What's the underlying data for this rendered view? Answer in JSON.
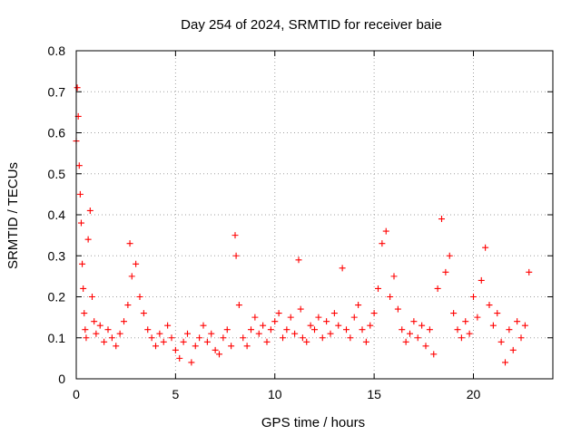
{
  "chart_data": {
    "type": "scatter",
    "title": "Day 254 of 2024, SRMTID for receiver baie",
    "xlabel": "GPS time / hours",
    "ylabel": "SRMTID / TECUs",
    "xlim": [
      0,
      24
    ],
    "ylim": [
      0,
      0.8
    ],
    "xticks": [
      "0",
      "5",
      "10",
      "15",
      "20"
    ],
    "yticks": [
      "0",
      "0.1",
      "0.2",
      "0.3",
      "0.4",
      "0.5",
      "0.6",
      "0.7",
      "0.8"
    ],
    "grid": true,
    "series": [
      {
        "name": "SRMTID",
        "color": "#ff0000",
        "marker": "plus",
        "x": [
          0.0,
          0.05,
          0.1,
          0.15,
          0.2,
          0.25,
          0.3,
          0.35,
          0.4,
          0.45,
          0.5,
          0.6,
          0.7,
          0.8,
          0.9,
          1.0,
          1.2,
          1.4,
          1.6,
          1.8,
          2.0,
          2.2,
          2.4,
          2.6,
          2.7,
          2.8,
          3.0,
          3.2,
          3.4,
          3.6,
          3.8,
          4.0,
          4.2,
          4.4,
          4.6,
          4.8,
          5.0,
          5.2,
          5.4,
          5.6,
          5.8,
          6.0,
          6.2,
          6.4,
          6.6,
          6.8,
          7.0,
          7.2,
          7.4,
          7.6,
          7.8,
          8.0,
          8.05,
          8.2,
          8.4,
          8.6,
          8.8,
          9.0,
          9.2,
          9.4,
          9.6,
          9.8,
          10.0,
          10.2,
          10.4,
          10.6,
          10.8,
          11.0,
          11.2,
          11.3,
          11.4,
          11.6,
          11.8,
          12.0,
          12.2,
          12.4,
          12.6,
          12.8,
          13.0,
          13.2,
          13.4,
          13.6,
          13.8,
          14.0,
          14.2,
          14.4,
          14.6,
          14.8,
          15.0,
          15.2,
          15.4,
          15.6,
          15.8,
          16.0,
          16.2,
          16.4,
          16.6,
          16.8,
          17.0,
          17.2,
          17.4,
          17.6,
          17.8,
          18.0,
          18.2,
          18.4,
          18.6,
          18.8,
          19.0,
          19.2,
          19.4,
          19.6,
          19.8,
          20.0,
          20.2,
          20.4,
          20.6,
          20.8,
          21.0,
          21.2,
          21.4,
          21.6,
          21.8,
          22.0,
          22.2,
          22.4,
          22.6,
          22.8
        ],
        "y": [
          0.58,
          0.71,
          0.64,
          0.52,
          0.45,
          0.38,
          0.28,
          0.22,
          0.16,
          0.12,
          0.1,
          0.34,
          0.41,
          0.2,
          0.14,
          0.11,
          0.13,
          0.09,
          0.12,
          0.1,
          0.08,
          0.11,
          0.14,
          0.18,
          0.33,
          0.25,
          0.28,
          0.2,
          0.16,
          0.12,
          0.1,
          0.08,
          0.11,
          0.09,
          0.13,
          0.1,
          0.07,
          0.05,
          0.09,
          0.11,
          0.04,
          0.08,
          0.1,
          0.13,
          0.09,
          0.11,
          0.07,
          0.06,
          0.1,
          0.12,
          0.08,
          0.35,
          0.3,
          0.18,
          0.1,
          0.08,
          0.12,
          0.15,
          0.11,
          0.13,
          0.09,
          0.12,
          0.14,
          0.16,
          0.1,
          0.12,
          0.15,
          0.11,
          0.29,
          0.17,
          0.1,
          0.09,
          0.13,
          0.12,
          0.15,
          0.1,
          0.14,
          0.11,
          0.16,
          0.13,
          0.27,
          0.12,
          0.1,
          0.15,
          0.18,
          0.12,
          0.09,
          0.13,
          0.16,
          0.22,
          0.33,
          0.36,
          0.2,
          0.25,
          0.17,
          0.12,
          0.09,
          0.11,
          0.14,
          0.1,
          0.13,
          0.08,
          0.12,
          0.06,
          0.22,
          0.39,
          0.26,
          0.3,
          0.16,
          0.12,
          0.1,
          0.14,
          0.11,
          0.2,
          0.15,
          0.24,
          0.32,
          0.18,
          0.13,
          0.16,
          0.09,
          0.04,
          0.12,
          0.07,
          0.14,
          0.1,
          0.13,
          0.26
        ]
      }
    ]
  }
}
